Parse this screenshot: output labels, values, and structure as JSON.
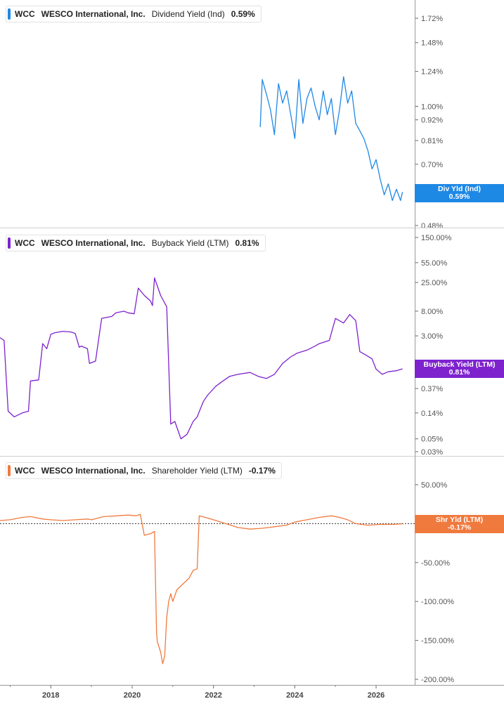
{
  "chart_data": [
    {
      "type": "line",
      "ticker": "WCC",
      "company": "WESCO International, Inc.",
      "metric": "Dividend Yield (Ind)",
      "current_value": "0.59%",
      "tag_label": "Div Yld (Ind)",
      "tag_value": "0.59%",
      "color": "#1e88e5",
      "scale": "log",
      "y_ticks": [
        "1.72%",
        "1.48%",
        "1.24%",
        "1.00%",
        "0.92%",
        "0.81%",
        "0.70%",
        "0.48%"
      ],
      "series": [
        {
          "x": [
            2023.15,
            2023.2,
            2023.3,
            2023.4,
            2023.5,
            2023.6,
            2023.7,
            2023.8,
            2023.9,
            2024.0,
            2024.1,
            2024.2,
            2024.3,
            2024.4,
            2024.5,
            2024.6,
            2024.7,
            2024.8,
            2024.9,
            2025.0,
            2025.1,
            2025.2,
            2025.3,
            2025.4,
            2025.5,
            2025.6,
            2025.7,
            2025.8,
            2025.9,
            2026.0,
            2026.1,
            2026.2,
            2026.3,
            2026.4,
            2026.5,
            2026.6,
            2026.65
          ],
          "y": [
            0.88,
            1.18,
            1.08,
            0.98,
            0.84,
            1.15,
            1.02,
            1.1,
            0.95,
            0.82,
            1.18,
            0.9,
            1.05,
            1.12,
            1.0,
            0.92,
            1.1,
            0.95,
            1.05,
            0.84,
            0.98,
            1.2,
            1.02,
            1.1,
            0.9,
            0.86,
            0.82,
            0.76,
            0.68,
            0.72,
            0.64,
            0.58,
            0.62,
            0.56,
            0.6,
            0.56,
            0.59
          ]
        }
      ]
    },
    {
      "type": "line",
      "ticker": "WCC",
      "company": "WESCO International, Inc.",
      "metric": "Buyback Yield (LTM)",
      "current_value": "0.81%",
      "tag_label": "Buyback Yield (LTM)",
      "tag_value": "0.81%",
      "color": "#7e22ce",
      "scale": "log",
      "y_ticks": [
        "150.00%",
        "55.00%",
        "25.00%",
        "8.00%",
        "3.00%",
        "0.37%",
        "0.14%",
        "0.05%",
        "0.03%"
      ],
      "series": [
        {
          "x": [
            2016.75,
            2016.85,
            2016.95,
            2017.1,
            2017.3,
            2017.45,
            2017.5,
            2017.7,
            2017.8,
            2017.9,
            2018.0,
            2018.1,
            2018.3,
            2018.5,
            2018.6,
            2018.7,
            2018.75,
            2018.9,
            2018.95,
            2019.1,
            2019.25,
            2019.5,
            2019.6,
            2019.8,
            2019.9,
            2020.05,
            2020.15,
            2020.3,
            2020.45,
            2020.5,
            2020.55,
            2020.7,
            2020.85,
            2020.95,
            2021.05,
            2021.2,
            2021.35,
            2021.5,
            2021.6,
            2021.75,
            2021.85,
            2022.05,
            2022.2,
            2022.4,
            2022.6,
            2022.9,
            2023.1,
            2023.3,
            2023.5,
            2023.7,
            2023.9,
            2024.05,
            2024.3,
            2024.5,
            2024.6,
            2024.85,
            2025.0,
            2025.2,
            2025.35,
            2025.5,
            2025.6,
            2025.75,
            2025.9,
            2026.0,
            2026.15,
            2026.3,
            2026.5,
            2026.65
          ],
          "y": [
            2.8,
            2.5,
            0.15,
            0.12,
            0.14,
            0.15,
            0.5,
            0.52,
            2.2,
            1.8,
            3.2,
            3.4,
            3.6,
            3.5,
            3.3,
            1.9,
            2.0,
            1.8,
            1.0,
            1.1,
            6.0,
            6.5,
            7.5,
            8.0,
            7.5,
            7.2,
            20.0,
            15.0,
            12.0,
            10.0,
            30.0,
            15.0,
            9.5,
            0.09,
            0.1,
            0.05,
            0.06,
            0.1,
            0.12,
            0.22,
            0.28,
            0.4,
            0.48,
            0.6,
            0.65,
            0.7,
            0.6,
            0.55,
            0.65,
            1.0,
            1.3,
            1.5,
            1.7,
            2.0,
            2.2,
            2.5,
            6.0,
            5.0,
            7.0,
            5.5,
            1.6,
            1.4,
            1.2,
            0.8,
            0.65,
            0.72,
            0.75,
            0.81
          ]
        }
      ]
    },
    {
      "type": "line",
      "ticker": "WCC",
      "company": "WESCO International, Inc.",
      "metric": "Shareholder Yield (LTM)",
      "current_value": "-0.17%",
      "tag_label": "Shr Yld (LTM)",
      "tag_value": "-0.17%",
      "color": "#f07a3e",
      "scale": "linear",
      "ylim": [
        -200,
        50
      ],
      "y_ticks": [
        "50.00%",
        "-50.00%",
        "-100.00%",
        "-150.00%",
        "-200.00%"
      ],
      "series": [
        {
          "x": [
            2016.75,
            2017.0,
            2017.3,
            2017.5,
            2017.8,
            2018.0,
            2018.3,
            2018.6,
            2018.9,
            2019.0,
            2019.3,
            2019.6,
            2019.9,
            2020.1,
            2020.2,
            2020.3,
            2020.45,
            2020.55,
            2020.6,
            2020.62,
            2020.7,
            2020.75,
            2020.8,
            2020.85,
            2020.9,
            2020.95,
            2021.0,
            2021.1,
            2021.2,
            2021.3,
            2021.4,
            2021.5,
            2021.6,
            2021.65,
            2021.8,
            2022.0,
            2022.3,
            2022.6,
            2022.9,
            2023.2,
            2023.5,
            2023.8,
            2024.0,
            2024.3,
            2024.6,
            2024.9,
            2025.1,
            2025.3,
            2025.5,
            2025.8,
            2026.1,
            2026.4,
            2026.65
          ],
          "y": [
            4,
            5,
            8,
            9,
            6,
            5,
            4,
            5,
            6,
            5,
            9,
            10,
            11,
            10,
            12,
            -15,
            -13,
            -10,
            -140,
            -152,
            -165,
            -180,
            -170,
            -120,
            -100,
            -90,
            -100,
            -85,
            -80,
            -75,
            -70,
            -60,
            -58,
            10,
            8,
            5,
            0,
            -5,
            -7,
            -6,
            -4,
            -2,
            2,
            5,
            8,
            10,
            8,
            5,
            0,
            -2,
            -1,
            -1,
            -0.17
          ]
        }
      ]
    }
  ],
  "x_axis": {
    "ticks": [
      "2018",
      "2020",
      "2022",
      "2024",
      "2026"
    ],
    "range": [
      2016.75,
      2026.95
    ]
  }
}
